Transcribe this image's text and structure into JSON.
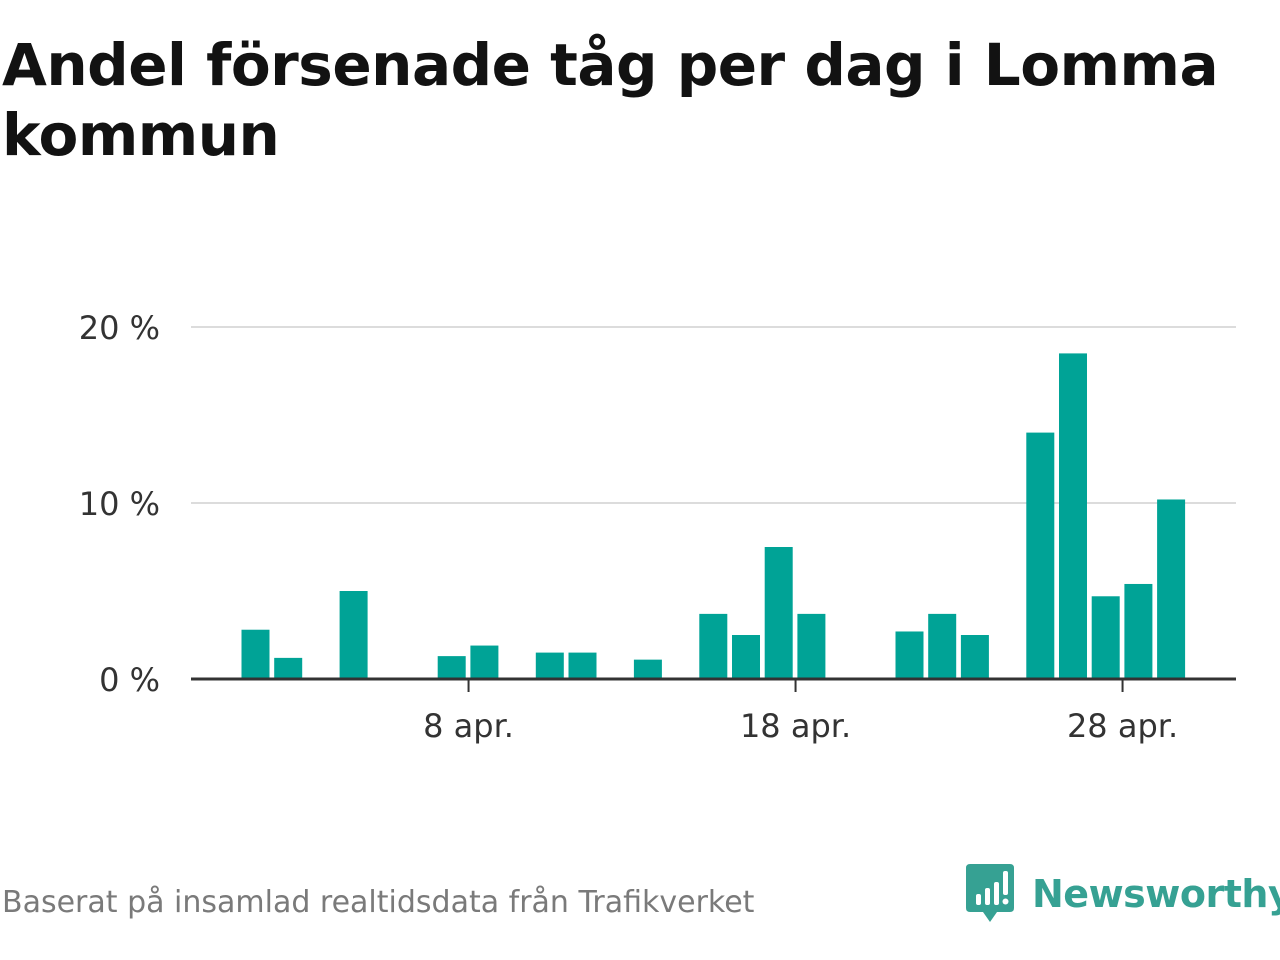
{
  "title": "Andel försenade tåg per dag i Lomma kommun",
  "source": "Baserat på insamlad realtidsdata från Trafikverket",
  "brand": {
    "name": "Newsworthy",
    "icon": "newsworthy-logo-icon",
    "color": "#36a193"
  },
  "chart_data": {
    "type": "bar",
    "ylabel": "",
    "xlabel": "",
    "ylim": [
      0,
      20
    ],
    "y_ticks": [
      "0 %",
      "10 %",
      "20 %"
    ],
    "y_tick_values": [
      0,
      10,
      20
    ],
    "x_ticks": [
      "8 apr.",
      "18 apr.",
      "28 apr."
    ],
    "x_tick_days": [
      8,
      18,
      28
    ],
    "grid": true,
    "bar_color": "#00a396",
    "days": [
      1,
      2,
      3,
      4,
      5,
      6,
      7,
      8,
      9,
      10,
      11,
      12,
      13,
      14,
      15,
      16,
      17,
      18,
      19,
      20,
      21,
      22,
      23,
      24,
      25,
      26,
      27,
      28,
      29,
      30
    ],
    "values": [
      2.8,
      1.2,
      0,
      5.0,
      0,
      0,
      1.3,
      1.9,
      0,
      1.5,
      1.5,
      0,
      1.1,
      0,
      3.7,
      2.5,
      7.5,
      3.7,
      0,
      0,
      2.7,
      3.7,
      2.5,
      0,
      14.0,
      18.5,
      4.7,
      5.4,
      10.2,
      0
    ]
  }
}
